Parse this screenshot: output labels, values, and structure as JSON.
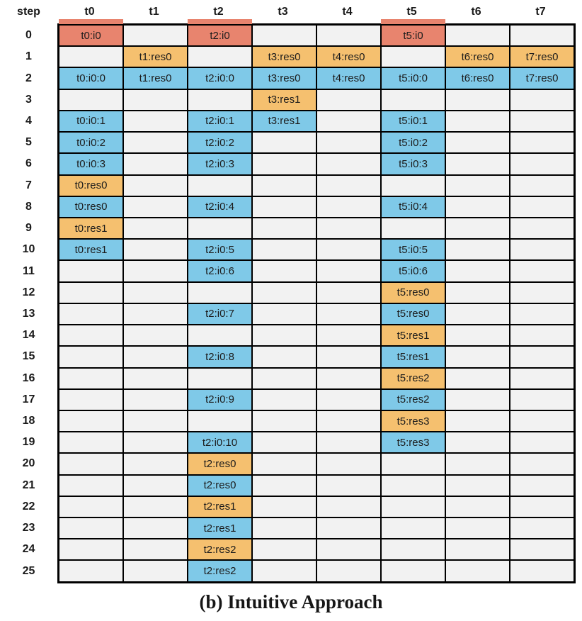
{
  "caption": "(b) Intuitive Approach",
  "colors": {
    "red": "#E8846E",
    "orange": "#F5C06F",
    "blue": "#7FC9E8",
    "empty": "#F2F2F2",
    "border": "#000000"
  },
  "table": {
    "step_label": "step",
    "columns": [
      "t0",
      "t1",
      "t2",
      "t3",
      "t4",
      "t5",
      "t6",
      "t7"
    ],
    "rows": [
      {
        "step": "0",
        "cells": [
          [
            "t0:i0",
            "red"
          ],
          null,
          [
            "t2:i0",
            "red"
          ],
          null,
          null,
          [
            "t5:i0",
            "red"
          ],
          null,
          null
        ]
      },
      {
        "step": "1",
        "cells": [
          null,
          [
            "t1:res0",
            "orange"
          ],
          null,
          [
            "t3:res0",
            "orange"
          ],
          [
            "t4:res0",
            "orange"
          ],
          null,
          [
            "t6:res0",
            "orange"
          ],
          [
            "t7:res0",
            "orange"
          ]
        ]
      },
      {
        "step": "2",
        "cells": [
          [
            "t0:i0:0",
            "blue"
          ],
          [
            "t1:res0",
            "blue"
          ],
          [
            "t2:i0:0",
            "blue"
          ],
          [
            "t3:res0",
            "blue"
          ],
          [
            "t4:res0",
            "blue"
          ],
          [
            "t5:i0:0",
            "blue"
          ],
          [
            "t6:res0",
            "blue"
          ],
          [
            "t7:res0",
            "blue"
          ]
        ]
      },
      {
        "step": "3",
        "cells": [
          null,
          null,
          null,
          [
            "t3:res1",
            "orange"
          ],
          null,
          null,
          null,
          null
        ]
      },
      {
        "step": "4",
        "cells": [
          [
            "t0:i0:1",
            "blue"
          ],
          null,
          [
            "t2:i0:1",
            "blue"
          ],
          [
            "t3:res1",
            "blue"
          ],
          null,
          [
            "t5:i0:1",
            "blue"
          ],
          null,
          null
        ]
      },
      {
        "step": "5",
        "cells": [
          [
            "t0:i0:2",
            "blue"
          ],
          null,
          [
            "t2:i0:2",
            "blue"
          ],
          null,
          null,
          [
            "t5:i0:2",
            "blue"
          ],
          null,
          null
        ]
      },
      {
        "step": "6",
        "cells": [
          [
            "t0:i0:3",
            "blue"
          ],
          null,
          [
            "t2:i0:3",
            "blue"
          ],
          null,
          null,
          [
            "t5:i0:3",
            "blue"
          ],
          null,
          null
        ]
      },
      {
        "step": "7",
        "cells": [
          [
            "t0:res0",
            "orange"
          ],
          null,
          null,
          null,
          null,
          null,
          null,
          null
        ]
      },
      {
        "step": "8",
        "cells": [
          [
            "t0:res0",
            "blue"
          ],
          null,
          [
            "t2:i0:4",
            "blue"
          ],
          null,
          null,
          [
            "t5:i0:4",
            "blue"
          ],
          null,
          null
        ]
      },
      {
        "step": "9",
        "cells": [
          [
            "t0:res1",
            "orange"
          ],
          null,
          null,
          null,
          null,
          null,
          null,
          null
        ]
      },
      {
        "step": "10",
        "cells": [
          [
            "t0:res1",
            "blue"
          ],
          null,
          [
            "t2:i0:5",
            "blue"
          ],
          null,
          null,
          [
            "t5:i0:5",
            "blue"
          ],
          null,
          null
        ]
      },
      {
        "step": "11",
        "cells": [
          null,
          null,
          [
            "t2:i0:6",
            "blue"
          ],
          null,
          null,
          [
            "t5:i0:6",
            "blue"
          ],
          null,
          null
        ]
      },
      {
        "step": "12",
        "cells": [
          null,
          null,
          null,
          null,
          null,
          [
            "t5:res0",
            "orange"
          ],
          null,
          null
        ]
      },
      {
        "step": "13",
        "cells": [
          null,
          null,
          [
            "t2:i0:7",
            "blue"
          ],
          null,
          null,
          [
            "t5:res0",
            "blue"
          ],
          null,
          null
        ]
      },
      {
        "step": "14",
        "cells": [
          null,
          null,
          null,
          null,
          null,
          [
            "t5:res1",
            "orange"
          ],
          null,
          null
        ]
      },
      {
        "step": "15",
        "cells": [
          null,
          null,
          [
            "t2:i0:8",
            "blue"
          ],
          null,
          null,
          [
            "t5:res1",
            "blue"
          ],
          null,
          null
        ]
      },
      {
        "step": "16",
        "cells": [
          null,
          null,
          null,
          null,
          null,
          [
            "t5:res2",
            "orange"
          ],
          null,
          null
        ]
      },
      {
        "step": "17",
        "cells": [
          null,
          null,
          [
            "t2:i0:9",
            "blue"
          ],
          null,
          null,
          [
            "t5:res2",
            "blue"
          ],
          null,
          null
        ]
      },
      {
        "step": "18",
        "cells": [
          null,
          null,
          null,
          null,
          null,
          [
            "t5:res3",
            "orange"
          ],
          null,
          null
        ]
      },
      {
        "step": "19",
        "cells": [
          null,
          null,
          [
            "t2:i0:10",
            "blue"
          ],
          null,
          null,
          [
            "t5:res3",
            "blue"
          ],
          null,
          null
        ]
      },
      {
        "step": "20",
        "cells": [
          null,
          null,
          [
            "t2:res0",
            "orange"
          ],
          null,
          null,
          null,
          null,
          null
        ]
      },
      {
        "step": "21",
        "cells": [
          null,
          null,
          [
            "t2:res0",
            "blue"
          ],
          null,
          null,
          null,
          null,
          null
        ]
      },
      {
        "step": "22",
        "cells": [
          null,
          null,
          [
            "t2:res1",
            "orange"
          ],
          null,
          null,
          null,
          null,
          null
        ]
      },
      {
        "step": "23",
        "cells": [
          null,
          null,
          [
            "t2:res1",
            "blue"
          ],
          null,
          null,
          null,
          null,
          null
        ]
      },
      {
        "step": "24",
        "cells": [
          null,
          null,
          [
            "t2:res2",
            "orange"
          ],
          null,
          null,
          null,
          null,
          null
        ]
      },
      {
        "step": "25",
        "cells": [
          null,
          null,
          [
            "t2:res2",
            "blue"
          ],
          null,
          null,
          null,
          null,
          null
        ]
      }
    ]
  }
}
